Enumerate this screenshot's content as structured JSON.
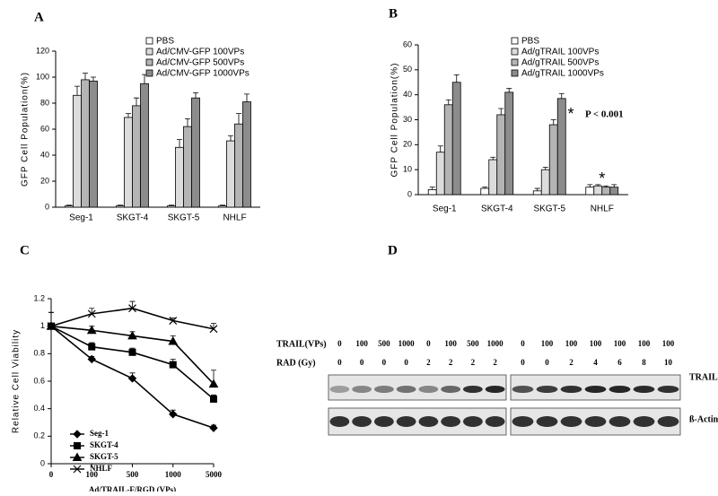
{
  "chart_data": [
    {
      "type": "bar",
      "panel": "A",
      "ylabel": "GFP Cell Population(%)",
      "categories": [
        "Seg-1",
        "SKGT-4",
        "SKGT-5",
        "NHLF"
      ],
      "series": [
        {
          "name": "PBS",
          "color": "#ffffff",
          "values": [
            1,
            1,
            1,
            1
          ],
          "errors": [
            0.5,
            0.5,
            0.5,
            0.5
          ]
        },
        {
          "name": "Ad/CMV-GFP 100VPs",
          "color": "#dcdcdc",
          "values": [
            86,
            69,
            46,
            51
          ],
          "errors": [
            7,
            3,
            6,
            4
          ]
        },
        {
          "name": "Ad/CMV-GFP 500VPs",
          "color": "#b4b4b4",
          "values": [
            98,
            78,
            62,
            64
          ],
          "errors": [
            5,
            6,
            6,
            8
          ]
        },
        {
          "name": "Ad/CMV-GFP 1000VPs",
          "color": "#8c8c8c",
          "values": [
            97,
            95,
            84,
            81
          ],
          "errors": [
            3,
            7,
            4,
            6
          ]
        }
      ],
      "ylim": [
        0,
        120
      ],
      "yticks": [
        0,
        20,
        40,
        60,
        80,
        100,
        120
      ]
    },
    {
      "type": "bar",
      "panel": "B",
      "ylabel": "GFP Cell Population(%)",
      "categories": [
        "Seg-1",
        "SKGT-4",
        "SKGT-5",
        "NHLF"
      ],
      "series": [
        {
          "name": "PBS",
          "color": "#ffffff",
          "values": [
            2,
            2.5,
            1.5,
            3
          ],
          "errors": [
            1,
            0.5,
            1,
            1
          ]
        },
        {
          "name": "Ad/gTRAIL 100VPs",
          "color": "#dcdcdc",
          "values": [
            17,
            14,
            10,
            3.5
          ],
          "errors": [
            2.5,
            1,
            1,
            0.5
          ]
        },
        {
          "name": "Ad/gTRAIL 500VPs",
          "color": "#b4b4b4",
          "values": [
            36,
            32,
            28,
            3
          ],
          "errors": [
            2,
            2.5,
            2,
            0.5
          ]
        },
        {
          "name": "Ad/gTRAIL 1000VPs",
          "color": "#8c8c8c",
          "values": [
            45,
            41,
            38.5,
            3
          ],
          "errors": [
            3,
            1.5,
            2,
            1
          ]
        }
      ],
      "ylim": [
        0,
        60
      ],
      "yticks": [
        0,
        10,
        20,
        30,
        40,
        50,
        60
      ],
      "significance_marker": "*",
      "annotation": "P < 0.001"
    },
    {
      "type": "line",
      "panel": "C",
      "ylabel": "Relative Cell Viability",
      "xlabel": "Ad/TRAIL-F/RGD (VPs)",
      "categories": [
        "0",
        "100",
        "500",
        "1000",
        "5000"
      ],
      "series": [
        {
          "name": "Seg-1",
          "color": "#000000",
          "values": [
            1,
            0.76,
            0.62,
            0.36,
            0.26
          ],
          "errors": [
            0.02,
            0.02,
            0.04,
            0.03,
            0.02
          ]
        },
        {
          "name": "SKGT-4",
          "color": "#000000",
          "values": [
            1,
            0.85,
            0.81,
            0.72,
            0.47
          ],
          "errors": [
            0.02,
            0.03,
            0.03,
            0.04,
            0.03
          ]
        },
        {
          "name": "SKGT-5",
          "color": "#000000",
          "values": [
            1,
            0.97,
            0.93,
            0.89,
            0.58
          ],
          "errors": [
            0.1,
            0.03,
            0.03,
            0.04,
            0.1
          ]
        },
        {
          "name": "NHLF",
          "color": "#000000",
          "values": [
            1,
            1.09,
            1.13,
            1.04,
            0.98
          ],
          "errors": [
            0.1,
            0.04,
            0.05,
            0.02,
            0.04
          ]
        }
      ],
      "ylim": [
        0,
        1.2
      ],
      "yticks": [
        0,
        0.2,
        0.4,
        0.6,
        0.8,
        1,
        1.2
      ]
    }
  ],
  "blot": {
    "panel": "D",
    "treatment_label": "TRAIL(VPs)",
    "dose_label": "RAD (Gy)",
    "groups": [
      {
        "trail": [
          "0",
          "100",
          "500",
          "1000",
          "0",
          "100",
          "500",
          "1000"
        ],
        "rad": [
          "0",
          "0",
          "0",
          "0",
          "2",
          "2",
          "2",
          "2"
        ]
      },
      {
        "trail": [
          "0",
          "100",
          "100",
          "100",
          "100",
          "100",
          "100"
        ],
        "rad": [
          "0",
          "0",
          "2",
          "4",
          "6",
          "8",
          "10"
        ]
      }
    ],
    "bands": [
      "TRAIL",
      "ß-Actin"
    ]
  }
}
